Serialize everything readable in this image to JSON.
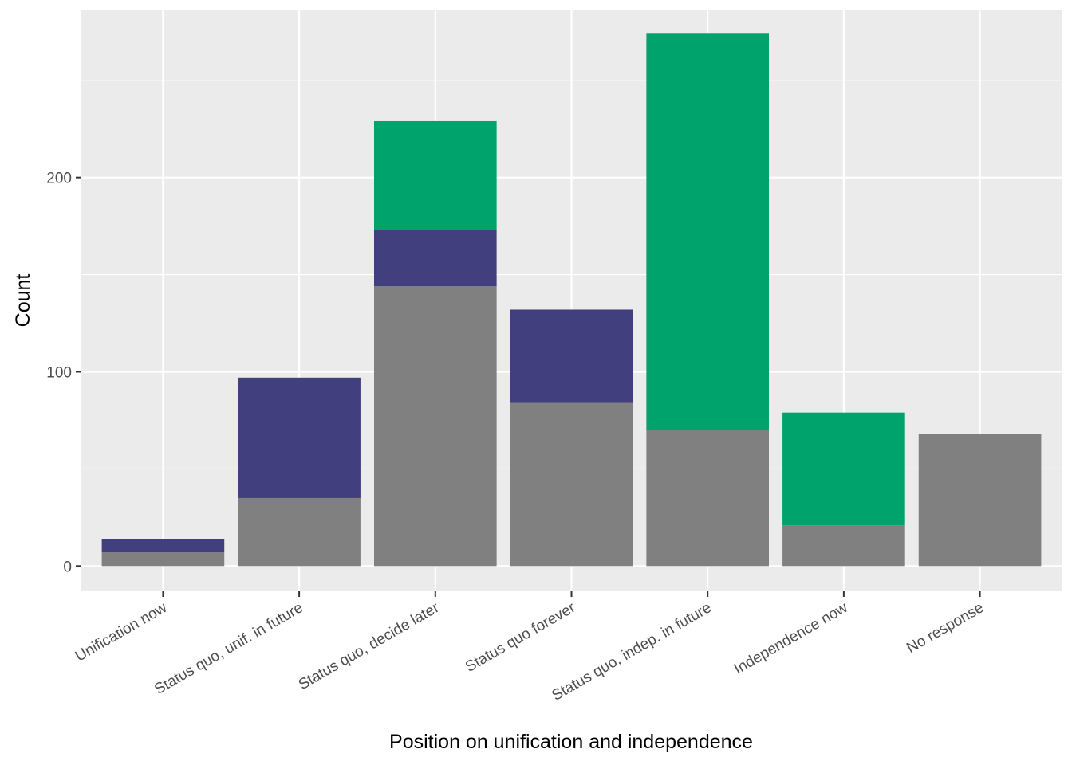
{
  "chart_data": {
    "type": "bar",
    "stacked": true,
    "title": "",
    "xlabel": "Position on unification and independence",
    "ylabel": "Count",
    "categories": [
      "Unification now",
      "Status quo, unif. in future",
      "Status quo, decide later",
      "Status quo forever",
      "Status quo, indep. in future",
      "Independence now",
      "No response"
    ],
    "series": [
      {
        "color": "#808080",
        "values": [
          7,
          35,
          144,
          84,
          70,
          21,
          68
        ]
      },
      {
        "color": "#413f7e",
        "values": [
          7,
          62,
          29,
          48,
          0,
          0,
          0
        ]
      },
      {
        "color": "#00a36c",
        "values": [
          0,
          0,
          56,
          0,
          204,
          58,
          0
        ]
      }
    ],
    "ylim": [
      -13,
      286
    ],
    "yticks": [
      0,
      100,
      200
    ],
    "ytick_labels": [
      "0",
      "100",
      "200"
    ],
    "grid": true,
    "legend": "none",
    "panel_background": "#ebebeb"
  }
}
